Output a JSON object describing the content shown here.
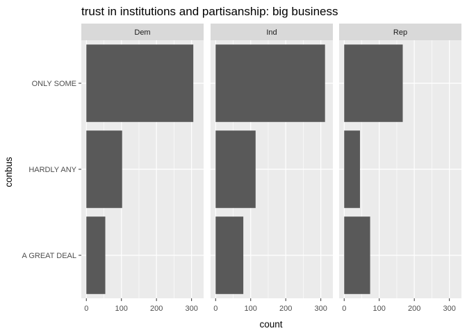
{
  "chart_data": {
    "type": "bar",
    "orientation": "horizontal",
    "title": "trust in institutions and partisanship: big business",
    "xlabel": "count",
    "ylabel": "conbus",
    "categories": [
      "A GREAT DEAL",
      "HARDLY ANY",
      "ONLY SOME"
    ],
    "xlim": [
      0,
      320
    ],
    "xticks": [
      0,
      100,
      200,
      300
    ],
    "facets": [
      {
        "name": "Dem",
        "values": [
          54,
          102,
          305
        ]
      },
      {
        "name": "Ind",
        "values": [
          79,
          114,
          312
        ]
      },
      {
        "name": "Rep",
        "values": [
          74,
          45,
          167
        ]
      }
    ],
    "grid": true,
    "legend": "none",
    "colors": {
      "bar": "#595959",
      "panel_bg": "#ebebeb",
      "strip_bg": "#d9d9d9",
      "grid": "#ffffff",
      "text": "#1a1a1a",
      "tick_text": "#4d4d4d"
    }
  }
}
